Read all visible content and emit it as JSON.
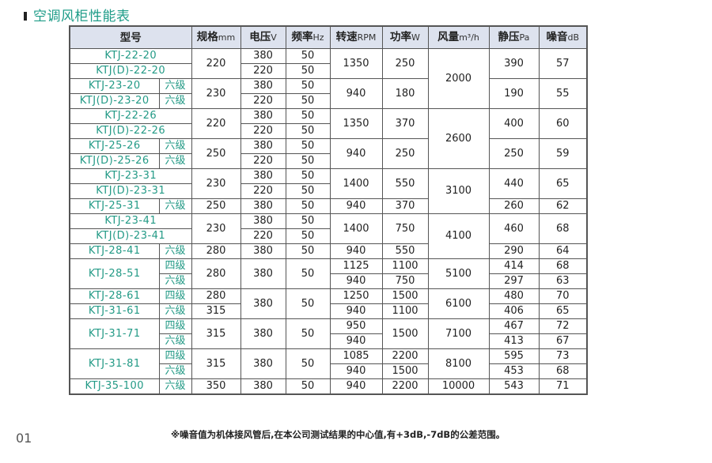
{
  "title": "空调风柜性能表",
  "header": {
    "model": "型号",
    "size": "规格",
    "size_unit": "mm",
    "voltage": "电压",
    "voltage_unit": "V",
    "freq": "频率",
    "freq_unit": "Hz",
    "speed": "转速",
    "speed_unit": "RPM",
    "power": "功率",
    "power_unit": "W",
    "airflow": "风量",
    "airflow_unit": "m³/h",
    "pressure": "静压",
    "pressure_unit": "Pa",
    "noise": "噪音",
    "noise_unit": "dB"
  },
  "rows": [
    [
      "KTJ-22-20",
      "220",
      "380",
      "50",
      "1350",
      "250",
      "2000",
      "390",
      "57"
    ],
    [
      "KTJ(D)-22-20",
      "220",
      "50"
    ],
    [
      "KTJ-23-20",
      "六级",
      "230",
      "380",
      "50",
      "940",
      "180",
      "190",
      "55"
    ],
    [
      "KTJ(D)-23-20",
      "六级",
      "220",
      "50"
    ],
    [
      "KTJ-22-26",
      "220",
      "380",
      "50",
      "1350",
      "370",
      "2600",
      "400",
      "60"
    ],
    [
      "KTJ(D)-22-26",
      "220",
      "50"
    ],
    [
      "KTJ-25-26",
      "六级",
      "250",
      "380",
      "50",
      "940",
      "250",
      "250",
      "59"
    ],
    [
      "KTJ(D)-25-26",
      "六级",
      "220",
      "50"
    ],
    [
      "KTJ-23-31",
      "230",
      "380",
      "50",
      "1400",
      "550",
      "3100",
      "440",
      "65"
    ],
    [
      "KTJ(D)-23-31",
      "220",
      "50"
    ],
    [
      "KTJ-25-31",
      "六级",
      "250",
      "380",
      "50",
      "940",
      "370",
      "260",
      "62"
    ],
    [],
    [
      "KTJ-23-41",
      "230",
      "380",
      "50",
      "1400",
      "750",
      "4100",
      "460",
      "68"
    ],
    [
      "KTJ(D)-23-41",
      "220",
      "50"
    ],
    [
      "KTJ-28-41",
      "六级",
      "280",
      "380",
      "50",
      "940",
      "550",
      "290",
      "64"
    ],
    [],
    [
      "KTJ-28-51",
      "四级",
      "280",
      "380",
      "50",
      "1125",
      "1100",
      "5100",
      "414",
      "68"
    ],
    [
      "六级",
      "940",
      "750",
      "297",
      "63"
    ],
    [
      "KTJ-28-61",
      "四级",
      "280",
      "380",
      "50",
      "1250",
      "1500",
      "6100",
      "480",
      "70"
    ],
    [
      "KTJ-31-61",
      "六级",
      "315",
      "940",
      "1100",
      "406",
      "65"
    ],
    [
      "KTJ-31-71",
      "四级",
      "315",
      "380",
      "50",
      "950",
      "1500",
      "7100",
      "467",
      "72"
    ],
    [
      "六级",
      "940",
      "413",
      "67"
    ],
    [
      "KTJ-31-81",
      "四级",
      "315",
      "380",
      "50",
      "1085",
      "2200",
      "8100",
      "595",
      "73"
    ],
    [
      "六级",
      "940",
      "1500",
      "453",
      "68"
    ],
    [
      "KTJ-35-100",
      "六级",
      "350",
      "380",
      "50",
      "940",
      "2200",
      "10000",
      "543",
      "71"
    ]
  ],
  "note": "※噪音值为机体接风管后,在本公司测试结果的中心值,有+3dB,-7dB的公差范围。",
  "page_number": "01",
  "colors": {
    "accent": "#1e9c88",
    "header_bg": "#dde2ee"
  }
}
